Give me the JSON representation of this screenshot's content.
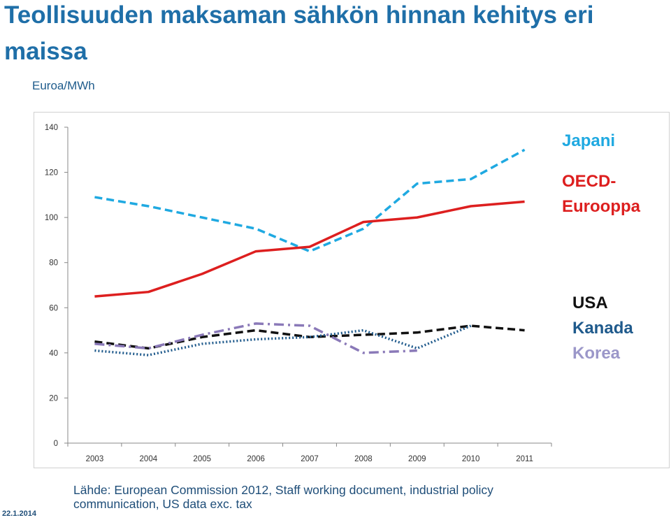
{
  "page": {
    "title": "Teollisuuden maksaman sähkön hinnan kehitys eri maissa",
    "unit_label": "Euroa/MWh",
    "source_line1": "Lähde: European Commission 2012, Staff working document, industrial policy",
    "source_line2": "communication, US data exc. tax",
    "date": "22.1.2014"
  },
  "chart_data": {
    "type": "line",
    "categories": [
      "2003",
      "2004",
      "2005",
      "2006",
      "2007",
      "2008",
      "2009",
      "2010",
      "2011"
    ],
    "ylim": [
      0,
      140
    ],
    "yticks": [
      0,
      20,
      40,
      60,
      80,
      100,
      120,
      140
    ],
    "grid": false,
    "legend_position": "right",
    "series": [
      {
        "name": "Japani",
        "color": "#1fa9e1",
        "dash": "dashed",
        "values": [
          109,
          105,
          100,
          95,
          85,
          95,
          115,
          117,
          130
        ]
      },
      {
        "name": "OECD-Eurooppa",
        "color": "#dd1f1f",
        "dash": "solid",
        "values": [
          65,
          67,
          75,
          85,
          87,
          98,
          100,
          105,
          107
        ]
      },
      {
        "name": "USA",
        "color": "#111111",
        "dash": "dashed",
        "values": [
          45,
          42,
          47,
          50,
          47,
          48,
          49,
          52,
          50
        ]
      },
      {
        "name": "Kanada",
        "color": "#1f5a8c",
        "dash": "dotted",
        "values": [
          41,
          39,
          44,
          46,
          47,
          50,
          42,
          52,
          null
        ]
      },
      {
        "name": "Korea",
        "color": "#8a79b8",
        "dash": "dashdot",
        "values": [
          44,
          42,
          48,
          53,
          52,
          40,
          41,
          null,
          null
        ]
      }
    ],
    "legend_labels": [
      "Japani",
      "OECD-",
      "Eurooppa",
      "USA",
      "Kanada",
      "Korea"
    ]
  }
}
